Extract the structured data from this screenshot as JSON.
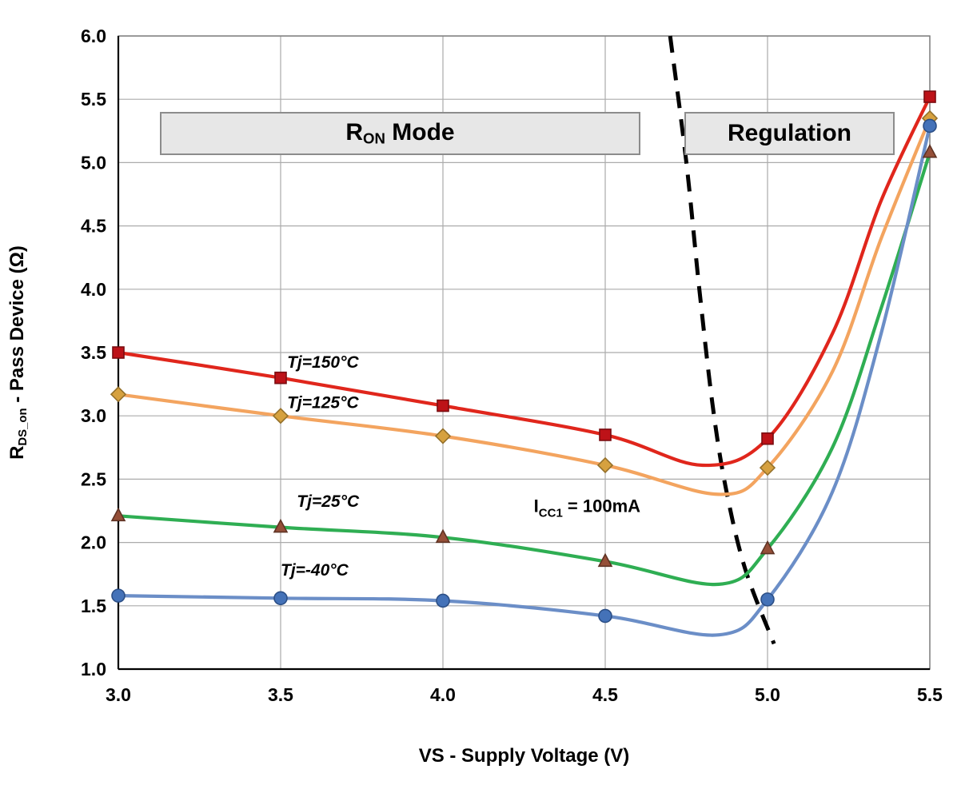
{
  "regions": {
    "ron_mode": {
      "pre": "R",
      "sub": "ON",
      "post": " Mode"
    },
    "regulation": "Regulation"
  },
  "chart_data": {
    "type": "line",
    "xlabel": "VS - Supply Voltage (V)",
    "ylabel_parts": {
      "pre": "R",
      "sub": "DS_on",
      "post": " - Pass Device (Ω)"
    },
    "xlim": [
      3.0,
      5.5
    ],
    "ylim": [
      1.0,
      6.0
    ],
    "grid": true,
    "grid_color": "#ababab",
    "axis_color": "#000000",
    "frame_color": "#808080",
    "x_tick_values": [
      3.0,
      3.5,
      4.0,
      4.5,
      5.0,
      5.5
    ],
    "x_ticks": [
      "3.0",
      "3.5",
      "4.0",
      "4.5",
      "5.0",
      "5.5"
    ],
    "y_tick_values": [
      1.0,
      1.5,
      2.0,
      2.5,
      3.0,
      3.5,
      4.0,
      4.5,
      5.0,
      5.5,
      6.0
    ],
    "y_ticks": [
      "1.0",
      "1.5",
      "2.0",
      "2.5",
      "3.0",
      "3.5",
      "4.0",
      "4.5",
      "5.0",
      "5.5",
      "6.0"
    ],
    "legend_position": "inline-labels",
    "series": [
      {
        "id": "tj150",
        "name": "Tj=150°C",
        "color": "#e0261c",
        "marker": "square",
        "marker_fill": "#bd1218",
        "marker_edge": "#7a0c10",
        "x": [
          3.0,
          3.5,
          4.0,
          4.5,
          4.8,
          5.0,
          5.2,
          5.35,
          5.5
        ],
        "y": [
          3.5,
          3.3,
          3.08,
          2.85,
          2.61,
          2.82,
          3.65,
          4.7,
          5.52
        ],
        "marker_at": [
          0,
          1,
          2,
          3,
          5,
          8
        ]
      },
      {
        "id": "tj125",
        "name": "Tj=125°C",
        "color": "#f3a45f",
        "marker": "diamond",
        "marker_fill": "#d6a13f",
        "marker_edge": "#94702a",
        "x": [
          3.0,
          3.5,
          4.0,
          4.5,
          4.85,
          5.0,
          5.2,
          5.35,
          5.5
        ],
        "y": [
          3.17,
          3.0,
          2.84,
          2.61,
          2.38,
          2.59,
          3.35,
          4.4,
          5.35
        ],
        "marker_at": [
          0,
          1,
          2,
          3,
          5,
          8
        ]
      },
      {
        "id": "tj25",
        "name": "Tj=25°C",
        "color": "#2fae53",
        "marker": "triangle",
        "marker_fill": "#954f38",
        "marker_edge": "#5f3324",
        "x": [
          3.0,
          3.5,
          4.0,
          4.5,
          4.85,
          5.0,
          5.2,
          5.35,
          5.5
        ],
        "y": [
          2.21,
          2.12,
          2.04,
          1.85,
          1.67,
          1.95,
          2.75,
          3.85,
          5.08
        ],
        "marker_at": [
          0,
          1,
          2,
          3,
          5,
          8
        ]
      },
      {
        "id": "tjm40",
        "name": "Tj=-40°C",
        "color": "#6b8ec7",
        "marker": "circle",
        "marker_fill": "#4472b8",
        "marker_edge": "#2c4f86",
        "x": [
          3.0,
          3.5,
          4.0,
          4.5,
          4.85,
          5.0,
          5.2,
          5.35,
          5.5
        ],
        "y": [
          1.58,
          1.56,
          1.54,
          1.42,
          1.27,
          1.55,
          2.4,
          3.65,
          5.29
        ],
        "marker_at": [
          0,
          1,
          2,
          3,
          5,
          8
        ]
      }
    ],
    "boundary_line": {
      "id": "mode-boundary",
      "color": "#000000",
      "style": "dashed",
      "points": [
        [
          4.7,
          6.0
        ],
        [
          4.75,
          5.0
        ],
        [
          4.79,
          4.0
        ],
        [
          4.83,
          3.1
        ],
        [
          4.87,
          2.45
        ],
        [
          4.93,
          1.8
        ],
        [
          5.02,
          1.2
        ]
      ]
    },
    "annotations": [
      {
        "id": "label-tj150",
        "x": 3.52,
        "y": 3.38,
        "italic": true,
        "size": 21,
        "parts": [
          {
            "t": "Tj=150°C"
          }
        ]
      },
      {
        "id": "label-tj125",
        "x": 3.52,
        "y": 3.06,
        "italic": true,
        "size": 21,
        "parts": [
          {
            "t": "Tj=125°C"
          }
        ]
      },
      {
        "id": "label-tj25",
        "x": 3.55,
        "y": 2.28,
        "italic": true,
        "size": 21,
        "parts": [
          {
            "t": "Tj=25°C"
          }
        ]
      },
      {
        "id": "label-tj-40",
        "x": 3.5,
        "y": 1.74,
        "italic": true,
        "size": 21,
        "parts": [
          {
            "t": "Tj=-40°C"
          }
        ]
      },
      {
        "id": "label-icc1",
        "x": 4.28,
        "y": 2.24,
        "italic": false,
        "size": 22,
        "parts": [
          {
            "t": "I"
          },
          {
            "t": "CC1",
            "sub": true
          },
          {
            "t": " = 100mA"
          }
        ]
      }
    ]
  }
}
